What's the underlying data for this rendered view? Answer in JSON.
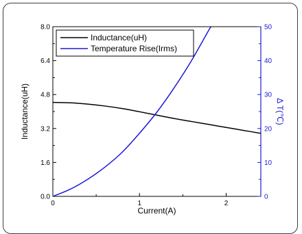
{
  "chart_data": {
    "type": "line",
    "xlabel": "Current(A)",
    "ylabel": "Inductance(uH)",
    "y2label": "Δ T(℃)",
    "xlim": [
      0,
      2.4
    ],
    "ylim": [
      0,
      8.0
    ],
    "y2lim": [
      0,
      50
    ],
    "x_ticks": [
      "0",
      "1",
      "2"
    ],
    "y_ticks": [
      "0.0",
      "1.6",
      "3.2",
      "4.8",
      "6.4",
      "8.0"
    ],
    "y2_ticks": [
      "0",
      "10",
      "20",
      "30",
      "40",
      "50"
    ],
    "legend_position": "top-left",
    "grid": false,
    "series": [
      {
        "name": "Inductance(uH)",
        "axis": "left",
        "color": "#000000",
        "x": [
          0,
          0.2,
          0.4,
          0.6,
          0.8,
          1.0,
          1.2,
          1.4,
          1.6,
          1.8,
          2.0,
          2.2,
          2.4
        ],
        "y": [
          4.43,
          4.41,
          4.35,
          4.26,
          4.14,
          3.99,
          3.83,
          3.67,
          3.53,
          3.39,
          3.25,
          3.11,
          2.97
        ]
      },
      {
        "name": "Temperature Rise(Irms)",
        "axis": "right",
        "color": "#1a1ad6",
        "x": [
          0,
          0.2,
          0.4,
          0.6,
          0.8,
          1.0,
          1.2,
          1.4,
          1.6,
          1.8,
          1.83
        ],
        "y": [
          0,
          2.1,
          5.0,
          8.6,
          13.0,
          18.6,
          24.8,
          32.0,
          40.0,
          49.0,
          50.0
        ]
      }
    ]
  }
}
